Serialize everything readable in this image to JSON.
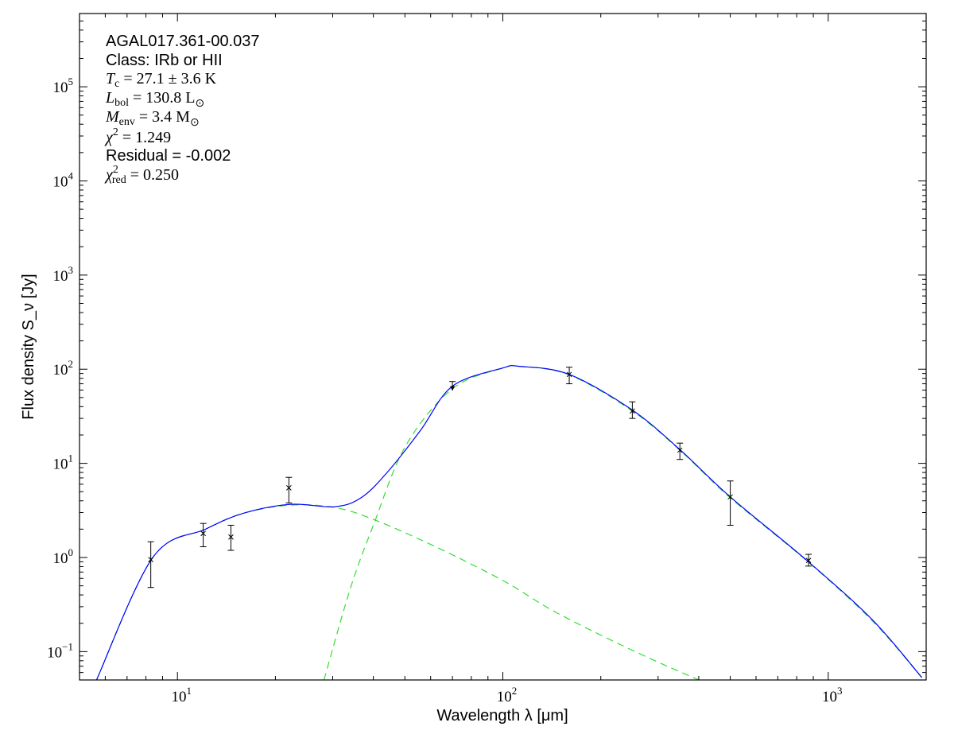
{
  "chart_data": {
    "type": "line",
    "xlabel": "Wavelength λ [μm]",
    "ylabel": "Flux density S_ν [Jy]",
    "xscale": "log",
    "yscale": "log",
    "xlim": [
      5,
      2000
    ],
    "ylim": [
      0.05,
      600000
    ],
    "grid": false,
    "x_ticks": [
      {
        "base": "10",
        "exp": "1",
        "value": 10
      },
      {
        "base": "10",
        "exp": "2",
        "value": 100
      },
      {
        "base": "10",
        "exp": "3",
        "value": 1000
      }
    ],
    "y_ticks": [
      {
        "base": "10",
        "exp": "−1",
        "value": 0.1
      },
      {
        "base": "10",
        "exp": "0",
        "value": 1
      },
      {
        "base": "10",
        "exp": "1",
        "value": 10
      },
      {
        "base": "10",
        "exp": "2",
        "value": 100
      },
      {
        "base": "10",
        "exp": "3",
        "value": 1000
      },
      {
        "base": "10",
        "exp": "4",
        "value": 10000
      },
      {
        "base": "10",
        "exp": "5",
        "value": 100000
      }
    ],
    "annotations": {
      "source": "AGAL017.361-00.037",
      "class": "Class: IRb or HII",
      "tc": {
        "sym": "T",
        "sub": "c",
        "rest": " = 27.1 ± 3.6 K"
      },
      "lbol": {
        "sym": "L",
        "sub": "bol",
        "rest": " = 130.8 L",
        "sun": "⊙"
      },
      "menv": {
        "sym": "M",
        "sub": "env",
        "rest": " = 3.4 M",
        "sun": "⊙"
      },
      "chi2": {
        "sym": "χ",
        "sup": "2",
        "rest": " = 1.249"
      },
      "residual": "Residual = -0.002",
      "chi2red": {
        "sym": "χ",
        "sup": "2",
        "sub": "red",
        "rest": " = 0.250"
      }
    },
    "points": [
      {
        "x": 8.28,
        "y": 0.95,
        "ylo": 0.48,
        "yhi": 1.47
      },
      {
        "x": 12,
        "y": 1.8,
        "ylo": 1.3,
        "yhi": 2.3
      },
      {
        "x": 14.6,
        "y": 1.65,
        "ylo": 1.19,
        "yhi": 2.2
      },
      {
        "x": 22,
        "y": 5.5,
        "ylo": 3.8,
        "yhi": 7.1
      },
      {
        "x": 70,
        "y": 66,
        "ylo": 60,
        "yhi": 74,
        "upper_limit": true
      },
      {
        "x": 160,
        "y": 88,
        "ylo": 70,
        "yhi": 105
      },
      {
        "x": 250,
        "y": 36,
        "ylo": 30,
        "yhi": 45
      },
      {
        "x": 350,
        "y": 13.8,
        "ylo": 11,
        "yhi": 16.4
      },
      {
        "x": 500,
        "y": 4.4,
        "ylo": 2.2,
        "yhi": 6.5
      },
      {
        "x": 870,
        "y": 0.93,
        "ylo": 0.81,
        "yhi": 1.08
      }
    ],
    "series": [
      {
        "style": "solid",
        "color": "#0000ff",
        "x": [
          5.64,
          8.4,
          12.2,
          16,
          22.3,
          30.4,
          36.9,
          44.9,
          56,
          70,
          100,
          113,
          160,
          250,
          350,
          500,
          860,
          1370,
          1940
        ],
        "y": [
          0.05,
          1.0,
          2.0,
          2.96,
          3.67,
          3.46,
          4.37,
          8.6,
          22.7,
          66,
          103,
          107,
          88,
          36.8,
          14,
          4.4,
          0.93,
          0.216,
          0.053
        ]
      },
      {
        "style": "dashed",
        "color": "#33dd33",
        "x": [
          5.64,
          8.4,
          12.2,
          16,
          22.3,
          30.4,
          40,
          61,
          100,
          146,
          255,
          400
        ],
        "y": [
          0.05,
          1.0,
          2.0,
          2.96,
          3.6,
          3.4,
          2.54,
          1.34,
          0.57,
          0.26,
          0.1,
          0.05
        ]
      },
      {
        "style": "dashed",
        "color": "#33dd33",
        "x": [
          28.2,
          34,
          40,
          50.3,
          70,
          100,
          113,
          160,
          250,
          350,
          500,
          860,
          1370,
          1940
        ],
        "y": [
          0.05,
          0.47,
          2.2,
          15.4,
          62,
          103,
          107,
          87,
          36,
          13.8,
          4.3,
          0.92,
          0.21,
          0.053
        ]
      }
    ]
  }
}
